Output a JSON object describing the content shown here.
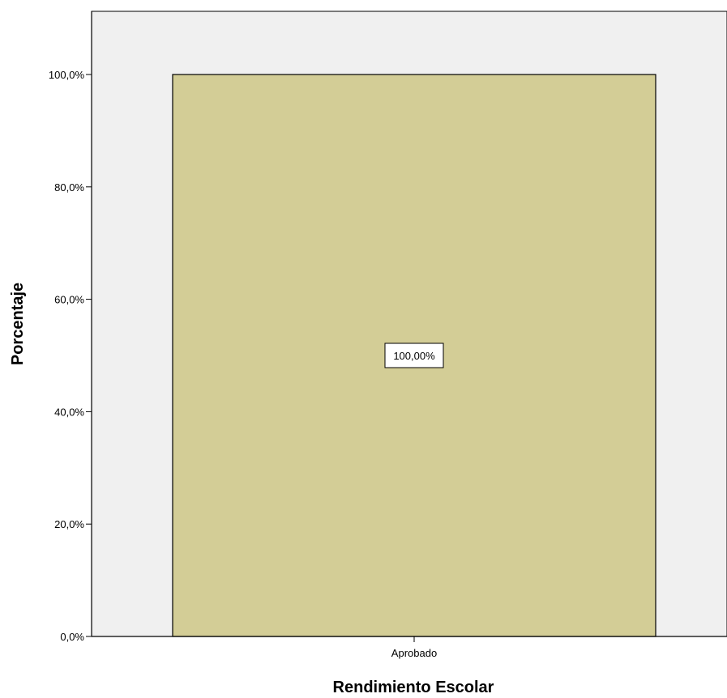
{
  "chart_data": {
    "type": "bar",
    "categories": [
      "Aprobado"
    ],
    "values": [
      100
    ],
    "data_labels": [
      "100,00%"
    ],
    "xlabel": "Rendimiento Escolar",
    "ylabel": "Porcentaje",
    "ylim": [
      0,
      100
    ],
    "yticks": [
      0,
      20,
      40,
      60,
      80,
      100
    ],
    "ytick_labels": [
      "0,0%",
      "20,0%",
      "40,0%",
      "60,0%",
      "80,0%",
      "100,0%"
    ],
    "grid": false,
    "legend": "none",
    "colors": {
      "plot_background": "#f0f0f0",
      "bar_fill": "#d3cd96",
      "bar_stroke": "#000000",
      "axis": "#000000",
      "label_box_fill": "#ffffff"
    }
  }
}
